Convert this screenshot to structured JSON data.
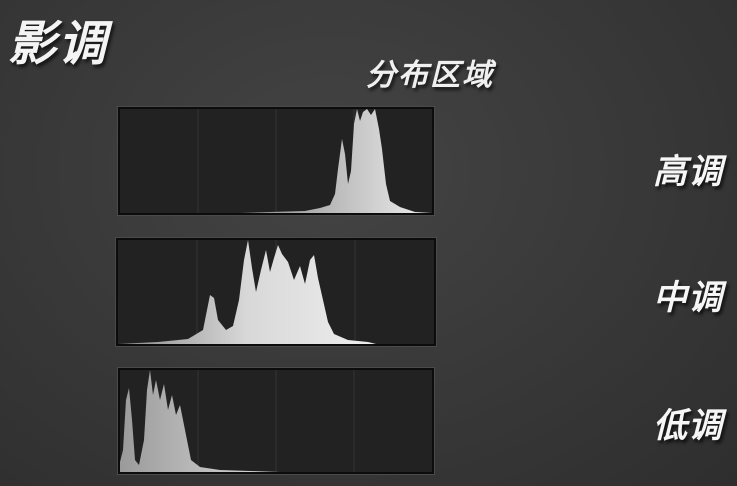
{
  "header": {
    "title": "影调",
    "subtitle": "分布区域"
  },
  "histograms": [
    {
      "label": "高调"
    },
    {
      "label": "中调"
    },
    {
      "label": "低调"
    }
  ],
  "colors": {
    "background": "#3a3a3a",
    "panel": "#222222",
    "histogram_fill_light": "#e6e6e6",
    "histogram_fill_dark": "#8a8a8a",
    "text": "#f4f4f4"
  }
}
